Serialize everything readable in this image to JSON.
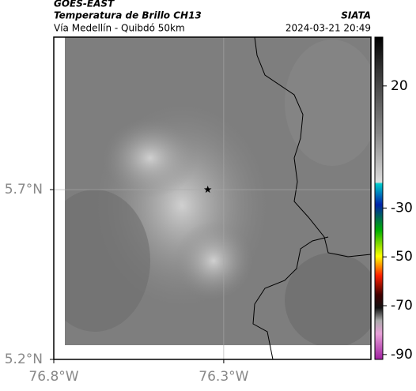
{
  "header": {
    "title": "GOES-EAST",
    "subtitle": "Temperatura de Brillo CH13",
    "route": "Vía Medellín - Quibdó 50km",
    "source": "SIATA",
    "datetime": "2024-03-21 20:49"
  },
  "map": {
    "xlim": [
      -76.8,
      -75.867
    ],
    "ylim": [
      5.2,
      6.149
    ],
    "xticks": [
      {
        "value": -76.8,
        "label": "76.8°W"
      },
      {
        "value": -76.3,
        "label": "76.3°W"
      }
    ],
    "yticks": [
      {
        "value": 5.7,
        "label": "5.7°N"
      },
      {
        "value": 5.2,
        "label": "5.2°N"
      }
    ],
    "grid": true,
    "marker": {
      "lon": -76.347,
      "lat": 5.7
    }
  },
  "colorbar": {
    "range": [
      -92,
      40
    ],
    "ticks": [
      20,
      -30,
      -50,
      -70,
      -90
    ]
  }
}
